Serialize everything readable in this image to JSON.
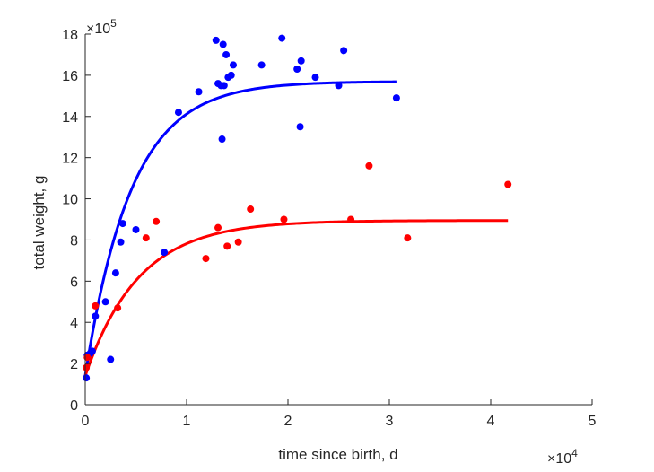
{
  "chart_data": {
    "type": "scatter",
    "xlabel": "time since birth, d",
    "ylabel": "total weight, g",
    "x_multiplier": "×10",
    "x_exponent": "4",
    "y_multiplier": "×10",
    "y_exponent": "5",
    "xlim": [
      0,
      5
    ],
    "ylim": [
      0,
      18
    ],
    "x_ticks": [
      "0",
      "1",
      "2",
      "3",
      "4",
      "5"
    ],
    "y_ticks": [
      "0",
      "2",
      "4",
      "6",
      "8",
      "10",
      "12",
      "14",
      "16",
      "18"
    ],
    "grid": false,
    "series": [
      {
        "color": "#0000ff",
        "points": [
          [
            0.01,
            1.3
          ],
          [
            0.02,
            2.4
          ],
          [
            0.05,
            2.5
          ],
          [
            0.07,
            2.6
          ],
          [
            0.1,
            4.3
          ],
          [
            0.2,
            5.0
          ],
          [
            0.25,
            2.2
          ],
          [
            0.3,
            6.4
          ],
          [
            0.35,
            7.9
          ],
          [
            0.37,
            8.8
          ],
          [
            0.5,
            8.5
          ],
          [
            0.78,
            7.4
          ],
          [
            0.92,
            14.2
          ],
          [
            1.12,
            15.2
          ],
          [
            1.29,
            17.7
          ],
          [
            1.31,
            15.6
          ],
          [
            1.34,
            15.5
          ],
          [
            1.35,
            12.9
          ],
          [
            1.36,
            17.5
          ],
          [
            1.37,
            15.5
          ],
          [
            1.39,
            17.0
          ],
          [
            1.41,
            15.9
          ],
          [
            1.44,
            16.0
          ],
          [
            1.46,
            16.5
          ],
          [
            1.74,
            16.5
          ],
          [
            1.94,
            17.8
          ],
          [
            2.09,
            16.3
          ],
          [
            2.12,
            13.5
          ],
          [
            2.13,
            16.7
          ],
          [
            2.27,
            15.9
          ],
          [
            2.5,
            15.5
          ],
          [
            2.55,
            17.2
          ],
          [
            3.07,
            14.9
          ]
        ],
        "fit": {
          "asymptote": 15.7,
          "start": 1.4,
          "rate": 2.2,
          "x_end": 3.07
        }
      },
      {
        "color": "#ff0000",
        "points": [
          [
            0.01,
            1.8
          ],
          [
            0.02,
            2.3
          ],
          [
            0.1,
            4.8
          ],
          [
            0.32,
            4.7
          ],
          [
            0.6,
            8.1
          ],
          [
            0.7,
            8.9
          ],
          [
            1.19,
            7.1
          ],
          [
            1.31,
            8.6
          ],
          [
            1.4,
            7.7
          ],
          [
            1.51,
            7.9
          ],
          [
            1.63,
            9.5
          ],
          [
            1.96,
            9.0
          ],
          [
            2.62,
            9.0
          ],
          [
            2.8,
            11.6
          ],
          [
            3.18,
            8.1
          ],
          [
            4.17,
            10.7
          ]
        ],
        "fit": {
          "asymptote": 8.95,
          "start": 1.4,
          "rate": 1.9,
          "x_end": 4.17
        }
      }
    ]
  }
}
